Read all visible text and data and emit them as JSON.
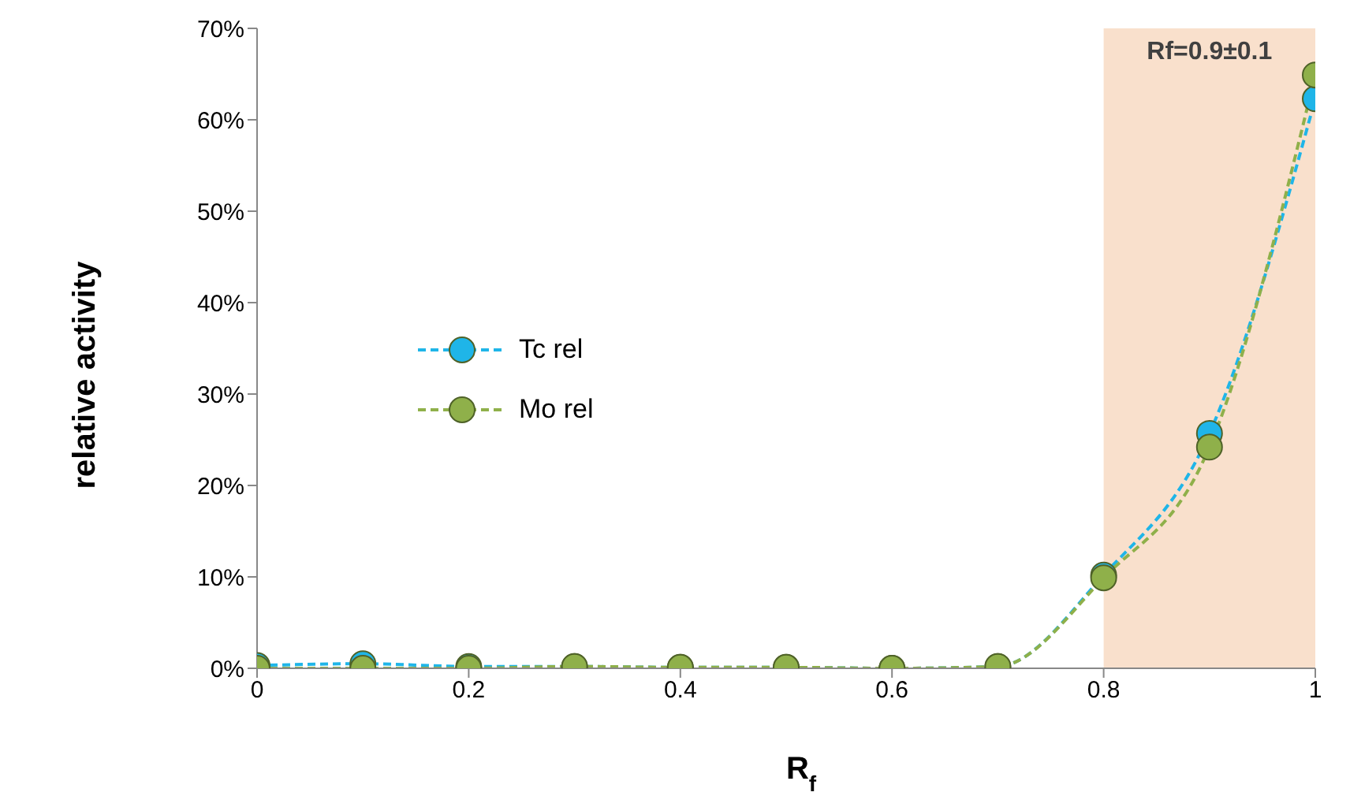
{
  "chart_data": {
    "type": "line",
    "xlabel": "R$_{f}$",
    "ylabel": "relative activity",
    "x": [
      0,
      0.1,
      0.2,
      0.3,
      0.4,
      0.5,
      0.6,
      0.7,
      0.8,
      0.9,
      1
    ],
    "series": [
      {
        "name": "Tc rel",
        "color": "#1fb5e8",
        "values": [
          0.3,
          0.5,
          0.2,
          0.2,
          0.1,
          0.1,
          0,
          0.2,
          10.2,
          25.7,
          62.3
        ]
      },
      {
        "name": "Mo rel",
        "color": "#8fb04a",
        "values": [
          0,
          0,
          0,
          0.2,
          0.1,
          0.1,
          0,
          0.2,
          9.9,
          24.2,
          64.9
        ]
      }
    ],
    "xlim": [
      0,
      1
    ],
    "xticks": [
      0,
      0.2,
      0.4,
      0.6,
      0.8,
      1
    ],
    "ylim": [
      0,
      70
    ],
    "yticks": [
      {
        "value": 0,
        "label": "0%"
      },
      {
        "value": 10,
        "label": "10%"
      },
      {
        "value": 20,
        "label": "20%"
      },
      {
        "value": 30,
        "label": "30%"
      },
      {
        "value": 40,
        "label": "40%"
      },
      {
        "value": 50,
        "label": "50%"
      },
      {
        "value": 60,
        "label": "60%"
      },
      {
        "value": 70,
        "label": "70%"
      }
    ],
    "bands": [
      {
        "axis": "x",
        "from": 0.8,
        "to": 1,
        "label": "Rf=0.9±0.1",
        "color": "#f9e0cc"
      }
    ],
    "grid": false,
    "legend": "left",
    "marker": "circle",
    "line_style": "dashed"
  }
}
